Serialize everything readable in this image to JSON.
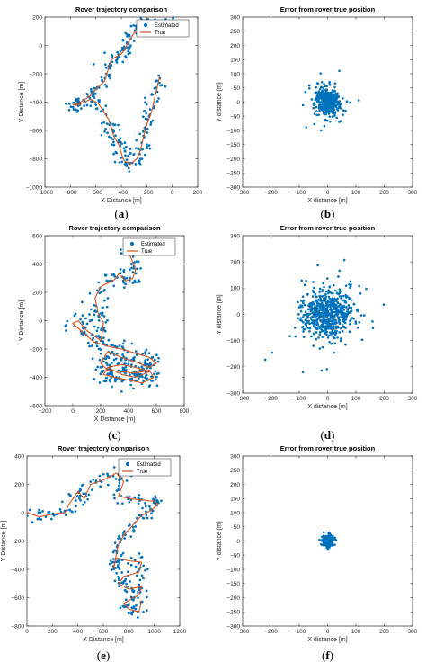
{
  "chart_data": [
    {
      "type": "scatter",
      "caption": [
        "(",
        "a",
        ")"
      ],
      "title": "Rover trajectory comparison",
      "xlabel": "X Distance [m]",
      "ylabel": "Y Distance [m]",
      "xlim": [
        -1000,
        200
      ],
      "ylim": [
        -1000,
        200
      ],
      "xticks": [
        -1000,
        -800,
        -600,
        -400,
        -200,
        0,
        200
      ],
      "yticks": [
        -1000,
        -800,
        -600,
        -400,
        -200,
        0,
        200
      ],
      "xtick_labels": [
        "−1000",
        "−800",
        "−600",
        "−400",
        "−200",
        "0",
        "200"
      ],
      "ytick_labels": [
        "−1000",
        "−800",
        "−600",
        "−400",
        "−200",
        "0",
        "200"
      ],
      "legend": {
        "placement": "top-right",
        "entries": [
          "Estimated",
          "True"
        ]
      },
      "series": [
        {
          "name": "True",
          "style": "line",
          "color": "#d95319",
          "x": [
            30,
            -50,
            -170,
            -230,
            -250,
            -300,
            -330,
            -360,
            -370,
            -400,
            -480,
            -500,
            -530,
            -600,
            -650,
            -740,
            -780,
            -740,
            -640,
            -580,
            -500,
            -480,
            -460,
            -420,
            -400,
            -380,
            -330,
            -280,
            -250,
            -230,
            -200,
            -160,
            -140,
            -120,
            -100
          ],
          "y": [
            110,
            160,
            160,
            150,
            130,
            90,
            40,
            0,
            -30,
            -60,
            -100,
            -160,
            -250,
            -310,
            -360,
            -410,
            -420,
            -420,
            -380,
            -410,
            -520,
            -580,
            -640,
            -700,
            -760,
            -810,
            -840,
            -800,
            -740,
            -660,
            -560,
            -460,
            -380,
            -300,
            -220
          ]
        },
        {
          "name": "Estimated",
          "style": "markers",
          "color": "#0072bd",
          "jitter": 30,
          "points_per_segment": 9
        }
      ]
    },
    {
      "type": "scatter",
      "caption": [
        "(",
        "b",
        ")"
      ],
      "title": "Error from rover true position",
      "xlabel": "X distance [m]",
      "ylabel": "Y distance [m]",
      "xlim": [
        -300,
        300
      ],
      "ylim": [
        -300,
        300
      ],
      "xticks": [
        -300,
        -200,
        -100,
        0,
        100,
        200,
        300
      ],
      "yticks": [
        -300,
        -250,
        -200,
        -150,
        -100,
        -50,
        0,
        50,
        100,
        150,
        200,
        250,
        300
      ],
      "xtick_labels": [
        "−300",
        "−200",
        "−100",
        "0",
        "100",
        "200",
        "300"
      ],
      "ytick_labels": [
        "−300",
        "−250",
        "−200",
        "−150",
        "−100",
        "−50",
        "0",
        "50",
        "100",
        "150",
        "200",
        "250",
        "300"
      ],
      "series": [
        {
          "name": "",
          "style": "error-cloud",
          "color": "#0072bd",
          "count": 420,
          "sigma": 22,
          "extent": 110
        }
      ]
    },
    {
      "type": "scatter",
      "caption": [
        "(",
        "c",
        ")"
      ],
      "title": "Rover trajectory comparison",
      "xlabel": "X Distance [m]",
      "ylabel": "Y Distance [m]",
      "xlim": [
        -200,
        800
      ],
      "ylim": [
        -600,
        600
      ],
      "xticks": [
        -200,
        0,
        200,
        400,
        600,
        800
      ],
      "yticks": [
        -600,
        -400,
        -200,
        0,
        200,
        400,
        600
      ],
      "xtick_labels": [
        "−200",
        "0",
        "200",
        "400",
        "600",
        "800"
      ],
      "ytick_labels": [
        "−600",
        "−400",
        "−200",
        "0",
        "200",
        "400",
        "600"
      ],
      "legend": {
        "placement": "top-right",
        "entries": [
          "Estimated",
          "True"
        ]
      },
      "series": [
        {
          "name": "True",
          "style": "line",
          "color": "#d95319",
          "x": [
            370,
            420,
            450,
            430,
            380,
            330,
            300,
            200,
            160,
            180,
            200,
            220,
            210,
            200,
            100,
            40,
            0,
            150,
            250,
            350,
            450,
            550,
            600,
            550,
            450,
            350,
            250,
            200,
            250,
            350,
            450,
            550,
            580,
            500,
            400,
            300,
            220,
            250,
            350,
            450,
            550,
            450,
            350,
            250
          ],
          "y": [
            520,
            440,
            360,
            300,
            280,
            330,
            290,
            240,
            160,
            60,
            20,
            -10,
            -100,
            -140,
            -70,
            0,
            -20,
            -150,
            -180,
            -200,
            -230,
            -260,
            -300,
            -330,
            -290,
            -260,
            -220,
            -300,
            -350,
            -360,
            -370,
            -350,
            -400,
            -440,
            -420,
            -400,
            -380,
            -330,
            -310,
            -330,
            -360,
            -400,
            -380,
            -330
          ]
        },
        {
          "name": "Estimated",
          "style": "markers",
          "color": "#0072bd",
          "jitter": 40,
          "points_per_segment": 8
        }
      ]
    },
    {
      "type": "scatter",
      "caption": [
        "(",
        "d",
        ")"
      ],
      "title": "Error from rover true position",
      "xlabel": "X distance [m]",
      "ylabel": "Y distance [m]",
      "xlim": [
        -300,
        300
      ],
      "ylim": [
        -300,
        300
      ],
      "xticks": [
        -300,
        -200,
        -100,
        0,
        100,
        200,
        300
      ],
      "yticks": [
        -300,
        -200,
        -100,
        0,
        100,
        200,
        300
      ],
      "xtick_labels": [
        "−300",
        "−200",
        "−100",
        "0",
        "100",
        "200",
        "300"
      ],
      "ytick_labels": [
        "−300",
        "−200",
        "−100",
        "0",
        "100",
        "200",
        "300"
      ],
      "series": [
        {
          "name": "",
          "style": "error-cloud",
          "color": "#0072bd",
          "count": 620,
          "sigma": 45,
          "extent": 220
        }
      ]
    },
    {
      "type": "scatter",
      "caption": [
        "(",
        "e",
        ")"
      ],
      "title": "Rover trajectory comparison",
      "xlabel": "X Distance [m]",
      "ylabel": "Y Distance [m]",
      "xlim": [
        0,
        1200
      ],
      "ylim": [
        -800,
        400
      ],
      "xticks": [
        0,
        200,
        400,
        600,
        800,
        1000,
        1200
      ],
      "yticks": [
        -800,
        -600,
        -400,
        -200,
        0,
        200,
        400
      ],
      "xtick_labels": [
        "0",
        "200",
        "400",
        "600",
        "800",
        "1000",
        "1200"
      ],
      "ytick_labels": [
        "−800",
        "−600",
        "−400",
        "−200",
        "0",
        "200",
        "400"
      ],
      "legend": {
        "placement": "top-right",
        "entries": [
          "Estimated",
          "True"
        ]
      },
      "series": [
        {
          "name": "True",
          "style": "line",
          "color": "#d95319",
          "x": [
            0,
            100,
            200,
            300,
            330,
            400,
            450,
            500,
            600,
            700,
            760,
            720,
            800,
            900,
            1000,
            1030,
            980,
            900,
            820,
            760,
            720,
            700,
            680,
            700,
            800,
            900,
            880,
            760,
            720,
            800,
            900,
            880,
            760,
            800,
            880,
            900
          ],
          "y": [
            0,
            -30,
            -10,
            0,
            60,
            150,
            100,
            200,
            230,
            280,
            220,
            120,
            100,
            90,
            80,
            60,
            20,
            -20,
            -100,
            -160,
            -220,
            -300,
            -400,
            -320,
            -340,
            -350,
            -420,
            -450,
            -500,
            -540,
            -520,
            -580,
            -640,
            -680,
            -700,
            -620
          ]
        },
        {
          "name": "Estimated",
          "style": "markers",
          "color": "#0072bd",
          "jitter": 28,
          "points_per_segment": 8
        }
      ]
    },
    {
      "type": "scatter",
      "caption": [
        "(",
        "f",
        ")"
      ],
      "title": "Error from rover true position",
      "xlabel": "X distance [m]",
      "ylabel": "Y distance [m]",
      "xlim": [
        -300,
        300
      ],
      "ylim": [
        -300,
        300
      ],
      "xticks": [
        -300,
        -200,
        -100,
        0,
        100,
        200,
        300
      ],
      "yticks": [
        -300,
        -250,
        -200,
        -150,
        -100,
        -50,
        0,
        50,
        100,
        150,
        200,
        250,
        300
      ],
      "xtick_labels": [
        "−300",
        "−200",
        "−100",
        "0",
        "100",
        "200",
        "300"
      ],
      "ytick_labels": [
        "−300",
        "−250",
        "−200",
        "−150",
        "−100",
        "−50",
        "0",
        "50",
        "100",
        "150",
        "200",
        "250",
        "300"
      ],
      "series": [
        {
          "name": "",
          "style": "error-cloud",
          "color": "#0072bd",
          "count": 260,
          "sigma": 9,
          "extent": 30
        }
      ]
    }
  ]
}
